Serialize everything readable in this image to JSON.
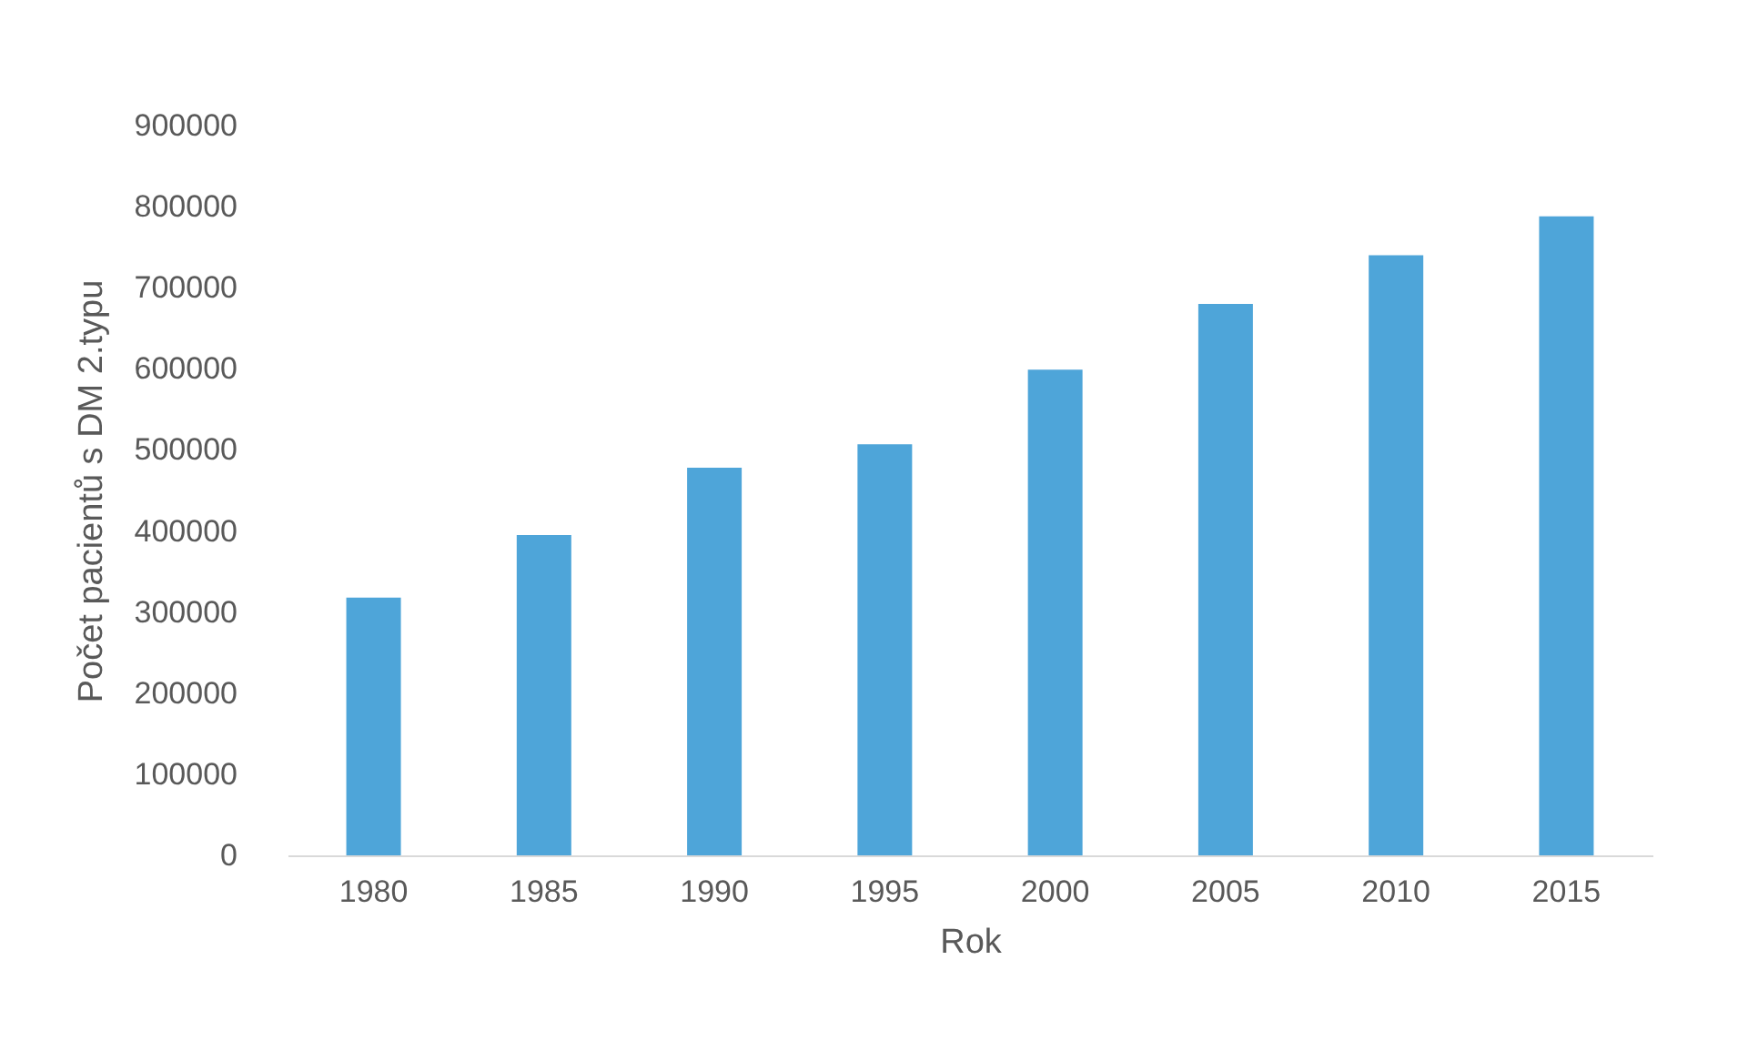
{
  "chart_data": {
    "type": "bar",
    "xlabel": "Rok",
    "ylabel": "Počet pacientů s DM 2.typu",
    "categories": [
      "1980",
      "1985",
      "1990",
      "1995",
      "2000",
      "2005",
      "2010",
      "2015"
    ],
    "values": [
      318000,
      395000,
      478000,
      507000,
      599000,
      680000,
      740000,
      788000
    ],
    "color": "#4ea5d9",
    "ylim": [
      0,
      900000
    ],
    "yticks": [
      0,
      100000,
      200000,
      300000,
      400000,
      500000,
      600000,
      700000,
      800000,
      900000
    ],
    "grid": false
  }
}
